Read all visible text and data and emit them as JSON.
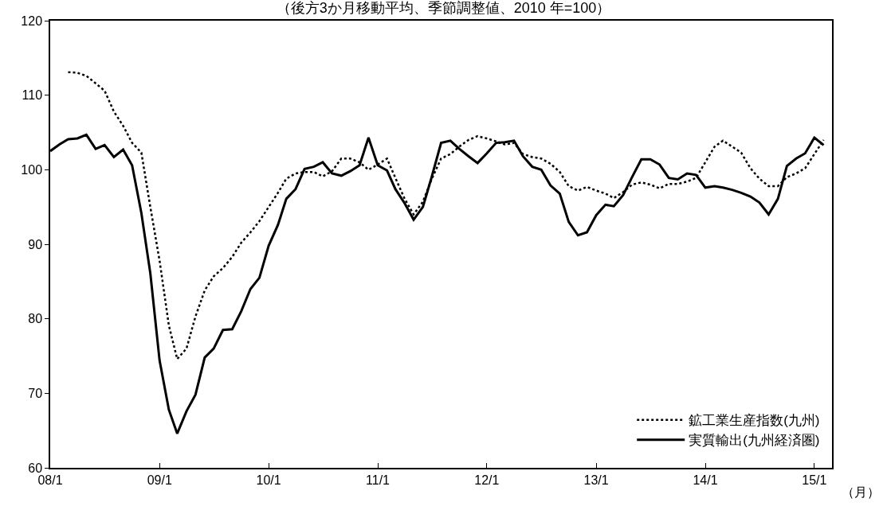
{
  "chart_data": {
    "type": "line",
    "title": "（後方3か月移動平均、季節調整値、2010 年=100）",
    "xlabel": "（月）",
    "x": [
      "2008-01",
      "2008-02",
      "2008-03",
      "2008-04",
      "2008-05",
      "2008-06",
      "2008-07",
      "2008-08",
      "2008-09",
      "2008-10",
      "2008-11",
      "2008-12",
      "2009-01",
      "2009-02",
      "2009-03",
      "2009-04",
      "2009-05",
      "2009-06",
      "2009-07",
      "2009-08",
      "2009-09",
      "2009-10",
      "2009-11",
      "2009-12",
      "2010-01",
      "2010-02",
      "2010-03",
      "2010-04",
      "2010-05",
      "2010-06",
      "2010-07",
      "2010-08",
      "2010-09",
      "2010-10",
      "2010-11",
      "2010-12",
      "2011-01",
      "2011-02",
      "2011-03",
      "2011-04",
      "2011-05",
      "2011-06",
      "2011-07",
      "2011-08",
      "2011-09",
      "2011-10",
      "2011-11",
      "2011-12",
      "2012-01",
      "2012-02",
      "2012-03",
      "2012-04",
      "2012-05",
      "2012-06",
      "2012-07",
      "2012-08",
      "2012-09",
      "2012-10",
      "2012-11",
      "2012-12",
      "2013-01",
      "2013-02",
      "2013-03",
      "2013-04",
      "2013-05",
      "2013-06",
      "2013-07",
      "2013-08",
      "2013-09",
      "2013-10",
      "2013-11",
      "2013-12",
      "2014-01",
      "2014-02",
      "2014-03",
      "2014-04",
      "2014-05",
      "2014-06",
      "2014-07",
      "2014-08",
      "2014-09",
      "2014-10",
      "2014-11",
      "2014-12",
      "2015-01",
      "2015-02"
    ],
    "series": [
      {
        "name": "鉱工業生産指数(九州)",
        "color": "#000000",
        "line_style": "dotted",
        "values": [
          null,
          null,
          113.1,
          113.0,
          112.6,
          111.6,
          110.6,
          107.8,
          105.9,
          103.6,
          102.3,
          95.0,
          87.8,
          79.1,
          74.6,
          76.0,
          80.3,
          83.8,
          85.7,
          86.8,
          88.3,
          90.2,
          91.6,
          93.1,
          95.0,
          96.9,
          98.8,
          99.5,
          99.7,
          99.7,
          99.1,
          99.8,
          101.5,
          101.5,
          101.0,
          100.0,
          100.7,
          101.5,
          98.9,
          96.1,
          94.0,
          95.7,
          98.8,
          101.5,
          102.1,
          103.1,
          104.0,
          104.5,
          104.2,
          103.8,
          103.4,
          103.6,
          102.1,
          101.7,
          101.5,
          100.8,
          99.7,
          97.8,
          97.2,
          97.7,
          97.2,
          96.8,
          96.2,
          97.0,
          98.0,
          98.3,
          98.0,
          97.5,
          98.1,
          98.1,
          98.4,
          98.9,
          101.0,
          103.1,
          103.9,
          103.1,
          102.3,
          100.2,
          98.8,
          97.8,
          97.8,
          99.0,
          99.5,
          100.2,
          102.1,
          104.0
        ]
      },
      {
        "name": "実質輸出(九州経済圏)",
        "color": "#000000",
        "line_style": "solid",
        "values": [
          102.5,
          103.4,
          104.1,
          104.2,
          104.7,
          102.8,
          103.3,
          101.7,
          102.7,
          100.6,
          94.2,
          86.1,
          74.4,
          67.8,
          64.6,
          67.6,
          69.8,
          74.8,
          76.0,
          78.5,
          78.6,
          81.0,
          84.0,
          85.5,
          89.8,
          92.6,
          96.1,
          97.4,
          100.1,
          100.4,
          101.0,
          99.5,
          99.2,
          99.8,
          100.6,
          104.3,
          100.6,
          99.9,
          97.4,
          95.5,
          93.3,
          95.0,
          99.1,
          103.6,
          103.9,
          102.8,
          101.8,
          100.9,
          102.2,
          103.6,
          103.7,
          103.9,
          101.8,
          100.4,
          100.0,
          97.9,
          96.8,
          93.0,
          91.2,
          91.6,
          93.9,
          95.3,
          95.1,
          96.6,
          99.0,
          101.4,
          101.4,
          100.7,
          98.9,
          98.7,
          99.5,
          99.3,
          97.6,
          97.8,
          97.6,
          97.3,
          96.9,
          96.4,
          95.6,
          94.0,
          96.1,
          100.5,
          101.5,
          102.2,
          104.3,
          103.3
        ]
      }
    ],
    "xlim": [
      "2008-01",
      "2015-03"
    ],
    "xticks": [
      {
        "value": "2008-01",
        "label": "08/1"
      },
      {
        "value": "2009-01",
        "label": "09/1"
      },
      {
        "value": "2010-01",
        "label": "10/1"
      },
      {
        "value": "2011-01",
        "label": "11/1"
      },
      {
        "value": "2012-01",
        "label": "12/1"
      },
      {
        "value": "2013-01",
        "label": "13/1"
      },
      {
        "value": "2014-01",
        "label": "14/1"
      },
      {
        "value": "2015-01",
        "label": "15/1"
      }
    ],
    "ylim": [
      60,
      120
    ],
    "yticks": [
      60,
      70,
      80,
      90,
      100,
      110,
      120
    ],
    "grid": false,
    "legend": "bottom right",
    "marker": "none"
  }
}
